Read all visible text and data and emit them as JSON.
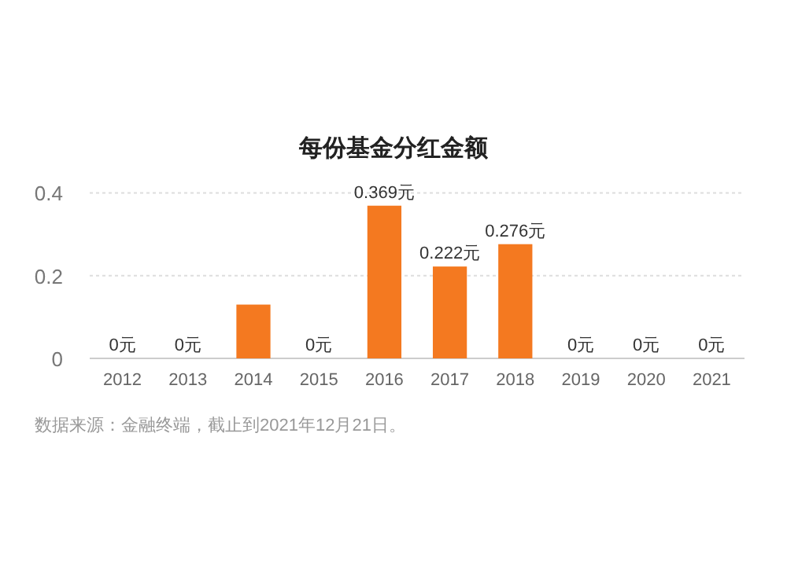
{
  "chart_data": {
    "type": "bar",
    "title": "每份基金分红金额",
    "categories": [
      "2012",
      "2013",
      "2014",
      "2015",
      "2016",
      "2017",
      "2018",
      "2019",
      "2020",
      "2021"
    ],
    "values": [
      0,
      0,
      0.13,
      0,
      0.369,
      0.222,
      0.276,
      0,
      0,
      0
    ],
    "value_labels": [
      "0元",
      "0元",
      null,
      "0元",
      "0.369元",
      "0.222元",
      "0.276元",
      "0元",
      "0元",
      "0元"
    ],
    "color": "#f47920",
    "ylim": [
      0,
      0.4
    ],
    "yticks": [
      0,
      0.2,
      0.4
    ],
    "grid": "y",
    "annotations": [
      "数据来源：金融终端，截止到2021年12月21日。"
    ]
  }
}
